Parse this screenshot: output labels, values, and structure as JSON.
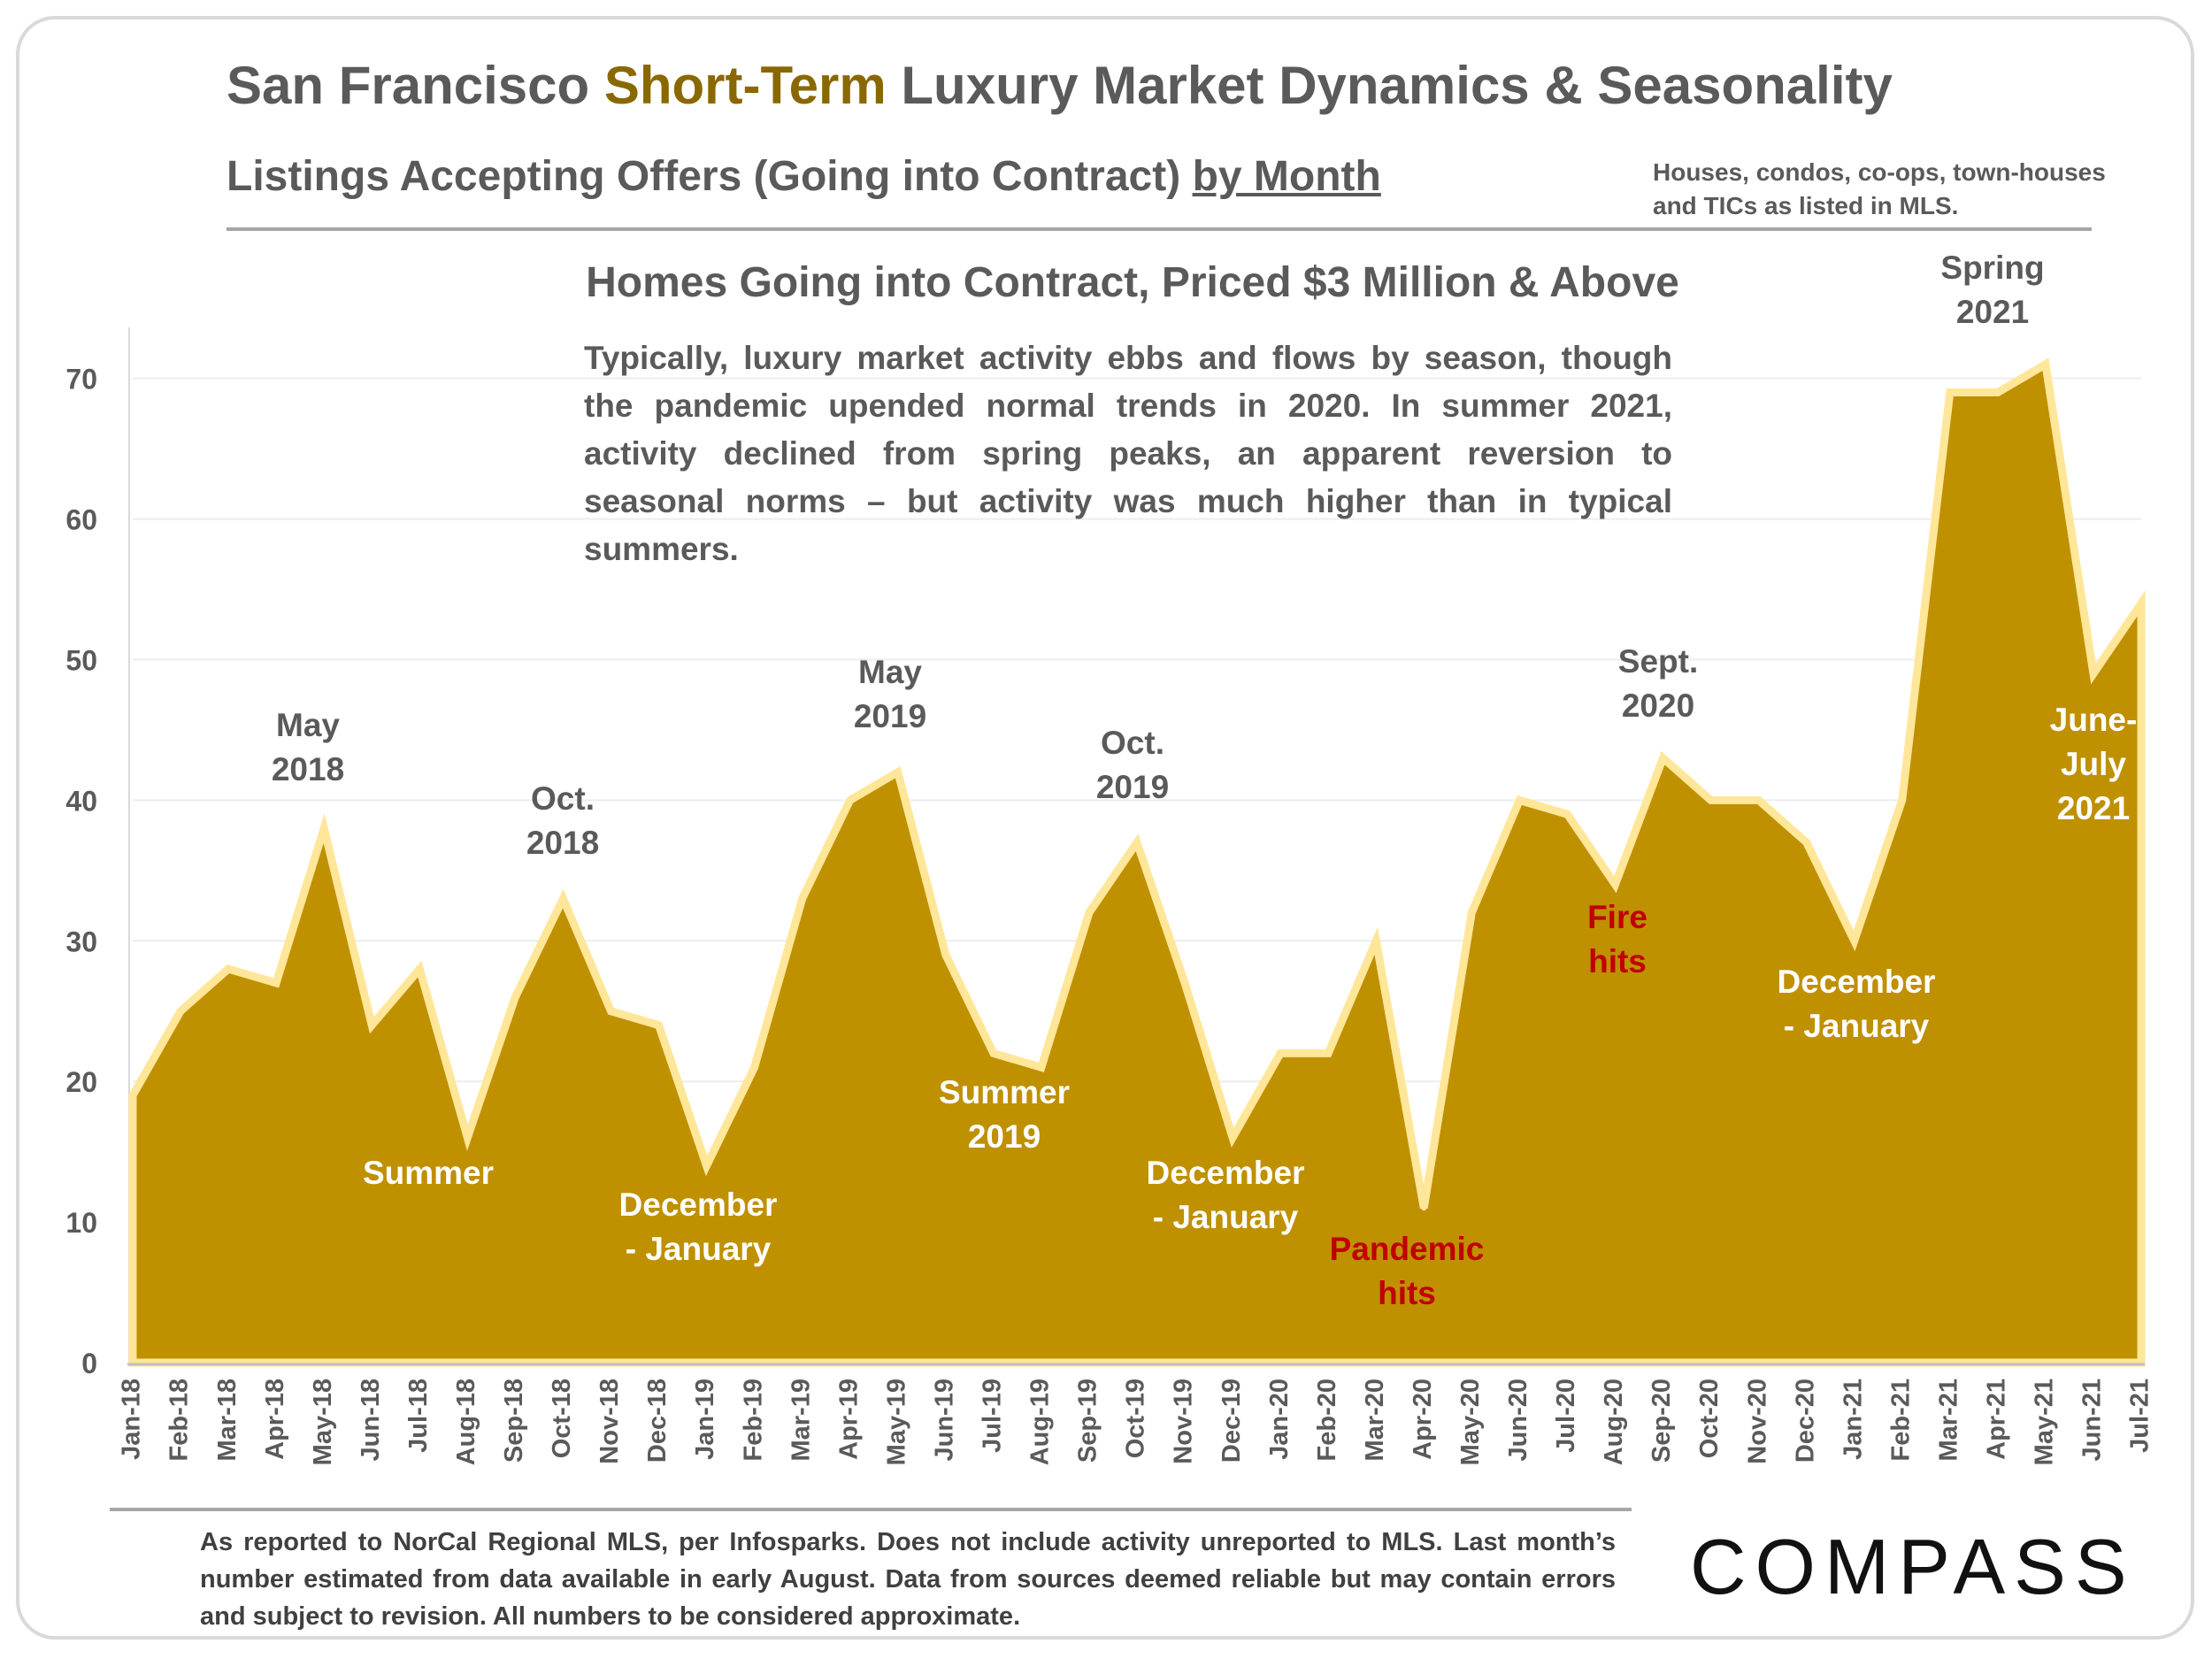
{
  "header": {
    "title_pre": "San Francisco ",
    "title_accent": "Short-Term",
    "title_post": " Luxury Market Dynamics & Seasonality",
    "subtitle_pre": "Listings Accepting Offers (Going into Contract) ",
    "subtitle_underlined": "by Month",
    "note": "Houses, condos, co-ops, town-houses and TICs as listed in MLS."
  },
  "description": "Typically, luxury market activity ebbs and flows by season, though the pandemic upended normal trends in 2020. In summer 2021, activity declined from spring peaks, an apparent reversion to seasonal norms – but activity was much higher than in typical summers.",
  "footer": {
    "text": "As reported to NorCal Regional MLS, per Infosparks. Does not include activity unreported to MLS. Last month’s number estimated from data available in early August. Data from sources deemed reliable but may contain errors and subject to revision.  All numbers to be considered approximate.",
    "logo": "COMPASS"
  },
  "colors": {
    "area_fill": "#BF9000",
    "area_stroke": "#FFE699",
    "accent": "#8A6800",
    "text": "#5A5A5A",
    "red": "#C00000",
    "white": "#FFFFFF"
  },
  "chart_data": {
    "type": "area",
    "title": "Homes Going into Contract, Priced $3 Million & Above",
    "xlabel": "",
    "ylabel": "",
    "ylim": [
      0,
      73
    ],
    "yticks": [
      0,
      10,
      20,
      30,
      40,
      50,
      60,
      70
    ],
    "grid": true,
    "categories": [
      "Jan-18",
      "Feb-18",
      "Mar-18",
      "Apr-18",
      "May-18",
      "Jun-18",
      "Jul-18",
      "Aug-18",
      "Sep-18",
      "Oct-18",
      "Nov-18",
      "Dec-18",
      "Jan-19",
      "Feb-19",
      "Mar-19",
      "Apr-19",
      "May-19",
      "Jun-19",
      "Jul-19",
      "Aug-19",
      "Sep-19",
      "Oct-19",
      "Nov-19",
      "Dec-19",
      "Jan-20",
      "Feb-20",
      "Mar-20",
      "Apr-20",
      "May-20",
      "Jun-20",
      "Jul-20",
      "Aug-20",
      "Sep-20",
      "Oct-20",
      "Nov-20",
      "Dec-20",
      "Jan-21",
      "Feb-21",
      "Mar-21",
      "Apr-21",
      "May-21",
      "Jun-21",
      "Jul-21"
    ],
    "values": [
      19,
      25,
      28,
      27,
      38,
      24,
      28,
      16,
      26,
      33,
      25,
      24,
      14,
      21,
      33,
      40,
      42,
      29,
      22,
      21,
      32,
      37,
      27,
      16,
      22,
      22,
      30,
      11,
      32,
      40,
      39,
      34,
      43,
      40,
      40,
      37,
      30,
      40,
      69,
      69,
      71,
      49,
      54
    ],
    "annotations": [
      {
        "text": [
          "May",
          "2018"
        ],
        "at": "May-18",
        "style": "dark"
      },
      {
        "text": [
          "Summer"
        ],
        "at": "Jul-18",
        "style": "light"
      },
      {
        "text": [
          "Oct.",
          "2018"
        ],
        "at": "Oct-18",
        "style": "dark"
      },
      {
        "text": [
          "December",
          "- January"
        ],
        "at": "Jan-19",
        "style": "light"
      },
      {
        "text": [
          "May",
          "2019"
        ],
        "at": "May-19",
        "style": "dark"
      },
      {
        "text": [
          "Summer",
          "2019"
        ],
        "at": "Aug-19",
        "style": "light"
      },
      {
        "text": [
          "Oct.",
          "2019"
        ],
        "at": "Oct-19",
        "style": "dark"
      },
      {
        "text": [
          "December",
          "- January"
        ],
        "at": "Dec-19",
        "style": "light"
      },
      {
        "text": [
          "Pandemic",
          "hits"
        ],
        "at": "Apr-20",
        "style": "red"
      },
      {
        "text": [
          "Fire",
          "hits"
        ],
        "at": "Aug-20",
        "style": "red"
      },
      {
        "text": [
          "Sept.",
          "2020"
        ],
        "at": "Sep-20",
        "style": "dark"
      },
      {
        "text": [
          "December",
          "- January"
        ],
        "at": "Jan-21",
        "style": "light"
      },
      {
        "text": [
          "Spring",
          "2021"
        ],
        "at": "Apr-21",
        "style": "dark"
      },
      {
        "text": [
          "June-",
          "July",
          "2021"
        ],
        "at": "Jul-21",
        "style": "light"
      }
    ]
  }
}
